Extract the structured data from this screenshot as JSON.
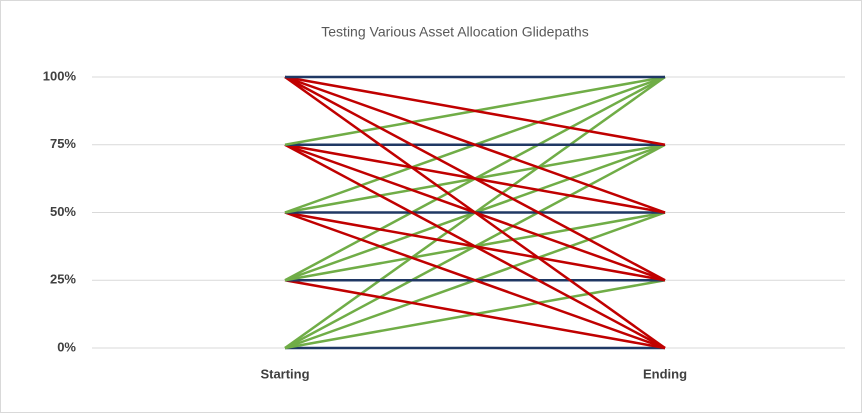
{
  "chart_data": {
    "type": "line",
    "title": "Testing Various Asset Allocation Glidepaths",
    "categories": [
      "Starting",
      "Ending"
    ],
    "ylim": [
      0,
      100
    ],
    "yticks": [
      {
        "value": 0,
        "label": "0%"
      },
      {
        "value": 25,
        "label": "25%"
      },
      {
        "value": 50,
        "label": "50%"
      },
      {
        "value": 75,
        "label": "75%"
      },
      {
        "value": 100,
        "label": "100%"
      }
    ],
    "grid": true,
    "series": [
      {
        "color": "#203864",
        "values": [
          0,
          0
        ]
      },
      {
        "color": "#70ad47",
        "values": [
          0,
          25
        ]
      },
      {
        "color": "#70ad47",
        "values": [
          0,
          50
        ]
      },
      {
        "color": "#70ad47",
        "values": [
          0,
          75
        ]
      },
      {
        "color": "#70ad47",
        "values": [
          0,
          100
        ]
      },
      {
        "color": "#c00000",
        "values": [
          25,
          0
        ]
      },
      {
        "color": "#203864",
        "values": [
          25,
          25
        ]
      },
      {
        "color": "#70ad47",
        "values": [
          25,
          50
        ]
      },
      {
        "color": "#70ad47",
        "values": [
          25,
          75
        ]
      },
      {
        "color": "#70ad47",
        "values": [
          25,
          100
        ]
      },
      {
        "color": "#c00000",
        "values": [
          50,
          0
        ]
      },
      {
        "color": "#c00000",
        "values": [
          50,
          25
        ]
      },
      {
        "color": "#203864",
        "values": [
          50,
          50
        ]
      },
      {
        "color": "#70ad47",
        "values": [
          50,
          75
        ]
      },
      {
        "color": "#70ad47",
        "values": [
          50,
          100
        ]
      },
      {
        "color": "#c00000",
        "values": [
          75,
          0
        ]
      },
      {
        "color": "#c00000",
        "values": [
          75,
          25
        ]
      },
      {
        "color": "#c00000",
        "values": [
          75,
          50
        ]
      },
      {
        "color": "#203864",
        "values": [
          75,
          75
        ]
      },
      {
        "color": "#70ad47",
        "values": [
          75,
          100
        ]
      },
      {
        "color": "#c00000",
        "values": [
          100,
          0
        ]
      },
      {
        "color": "#c00000",
        "values": [
          100,
          25
        ]
      },
      {
        "color": "#c00000",
        "values": [
          100,
          50
        ]
      },
      {
        "color": "#c00000",
        "values": [
          100,
          75
        ]
      },
      {
        "color": "#203864",
        "values": [
          100,
          100
        ]
      }
    ]
  }
}
